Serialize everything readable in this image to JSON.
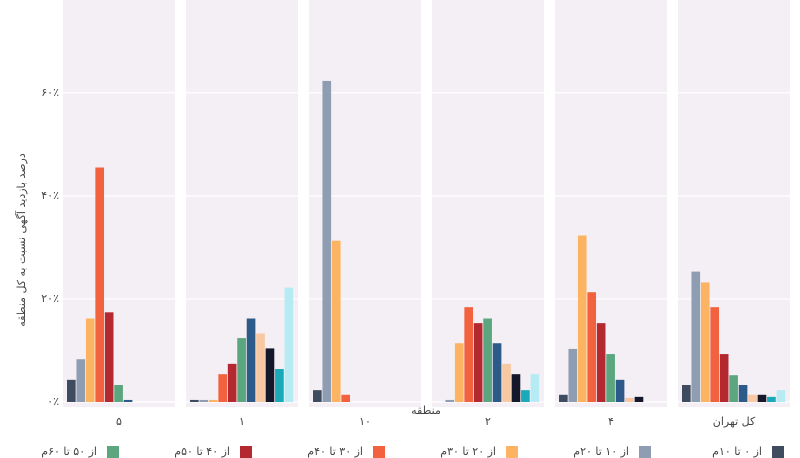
{
  "chart_data": {
    "type": "bar",
    "y_label": "درصد بازدید آگهی نسبت به کل منطقه",
    "x_label": "منطقه",
    "categories": [
      "۵",
      "۱",
      "۱۰",
      "۲",
      "۴",
      "کل تهران"
    ],
    "ylim": [
      0,
      78
    ],
    "yticks": [
      {
        "value": 0,
        "label": "۰٪"
      },
      {
        "value": 20,
        "label": "۲۰٪"
      },
      {
        "value": 40,
        "label": "۴۰٪"
      },
      {
        "value": 60,
        "label": "۶۰٪"
      }
    ],
    "grid": true,
    "series": [
      {
        "name": "از ۰ تا ۱۰م",
        "color": "#3f4b5e",
        "values": [
          4.3,
          0.4,
          2.3,
          0,
          1.4,
          3.3
        ]
      },
      {
        "name": "از ۱۰ تا ۲۰م",
        "color": "#8e9db1",
        "values": [
          8.3,
          0.4,
          62.3,
          0.4,
          10.3,
          25.3
        ]
      },
      {
        "name": "از ۲۰ تا ۳۰م",
        "color": "#fdb462",
        "values": [
          16.2,
          0.4,
          31.3,
          11.4,
          32.3,
          23.2
        ]
      },
      {
        "name": "از ۳۰ تا ۴۰م",
        "color": "#f2623f",
        "values": [
          45.5,
          5.4,
          1.4,
          18.4,
          21.3,
          18.4
        ]
      },
      {
        "name": "از ۴۰ تا ۵۰م",
        "color": "#b3292f",
        "values": [
          17.4,
          7.4,
          0,
          15.3,
          15.3,
          9.3
        ]
      },
      {
        "name": "از ۵۰ تا ۶۰م",
        "color": "#5ba57f",
        "values": [
          3.3,
          12.4,
          0,
          16.2,
          9.3,
          5.2
        ]
      },
      {
        "color": "#2c5b8a",
        "values": [
          0.4,
          16.2,
          0,
          11.4,
          4.3,
          3.3
        ]
      },
      {
        "color": "#f7c8a1",
        "values": [
          0,
          13.3,
          0,
          7.4,
          0.8,
          1.4
        ]
      },
      {
        "color": "#15172b",
        "values": [
          0,
          10.4,
          0,
          5.4,
          1,
          1.4
        ]
      },
      {
        "color": "#1aa9b8",
        "values": [
          0,
          6.4,
          0,
          2.3,
          0,
          1
        ]
      },
      {
        "color": "#b6ebf4",
        "values": [
          0,
          22.2,
          0,
          5.4,
          0,
          2.3
        ]
      }
    ]
  }
}
